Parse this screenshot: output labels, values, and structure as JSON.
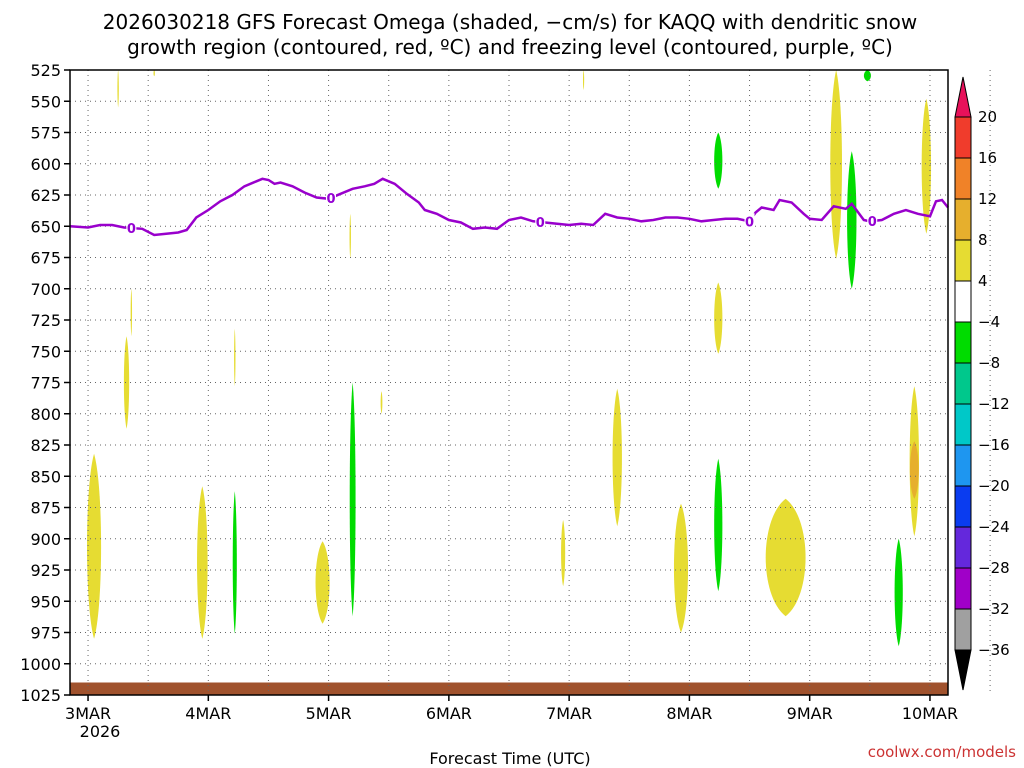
{
  "chart_data": {
    "type": "heatmap",
    "title_lines": [
      "2026030218 GFS Forecast Omega (shaded, −cm/s) for KAQQ with dendritic snow",
      "growth region (contoured, red, ºC) and freezing level (contoured, purple, ºC)"
    ],
    "xlabel": "Forecast Time (UTC)",
    "ylabel": "",
    "x_ticks": [
      "3MAR",
      "4MAR",
      "5MAR",
      "6MAR",
      "7MAR",
      "8MAR",
      "9MAR",
      "10MAR"
    ],
    "x_year": "2026",
    "x_range": [
      2.85,
      10.15
    ],
    "y_ticks": [
      525,
      550,
      575,
      600,
      625,
      650,
      675,
      700,
      725,
      750,
      775,
      800,
      825,
      850,
      875,
      900,
      925,
      950,
      975,
      1000,
      1025
    ],
    "y_range": [
      525,
      1025
    ],
    "grid": true,
    "colorbar": {
      "labels": [
        "20",
        "16",
        "12",
        "8",
        "4",
        "−4",
        "−8",
        "−12",
        "−16",
        "−20",
        "−24",
        "−28",
        "−32",
        "−36"
      ],
      "colors": [
        "#e8115a",
        "#f03c2c",
        "#f08228",
        "#e6af2d",
        "#e6dc32",
        "#ffffff",
        "#00dc00",
        "#00c88c",
        "#00c8c8",
        "#1e96f0",
        "#0a3cf0",
        "#6428dc",
        "#a000c8",
        "#a0a0a0",
        "#000000"
      ]
    },
    "freezing_level": {
      "color": "#9900cc",
      "label": "0",
      "label_times": [
        3.36,
        5.02,
        6.76,
        8.5,
        9.52
      ],
      "points": [
        [
          2.85,
          650
        ],
        [
          3.0,
          651
        ],
        [
          3.1,
          649
        ],
        [
          3.2,
          649
        ],
        [
          3.3,
          651
        ],
        [
          3.45,
          652
        ],
        [
          3.55,
          657
        ],
        [
          3.65,
          656
        ],
        [
          3.75,
          655
        ],
        [
          3.82,
          653
        ],
        [
          3.9,
          643
        ],
        [
          4.0,
          637
        ],
        [
          4.1,
          630
        ],
        [
          4.2,
          625
        ],
        [
          4.3,
          618
        ],
        [
          4.4,
          614
        ],
        [
          4.45,
          612
        ],
        [
          4.5,
          613
        ],
        [
          4.55,
          616
        ],
        [
          4.6,
          615
        ],
        [
          4.7,
          618
        ],
        [
          4.8,
          623
        ],
        [
          4.9,
          627
        ],
        [
          5.0,
          628
        ],
        [
          5.1,
          624
        ],
        [
          5.2,
          620
        ],
        [
          5.3,
          618
        ],
        [
          5.38,
          616
        ],
        [
          5.45,
          612
        ],
        [
          5.55,
          616
        ],
        [
          5.65,
          624
        ],
        [
          5.75,
          631
        ],
        [
          5.8,
          637
        ],
        [
          5.9,
          640
        ],
        [
          6.0,
          645
        ],
        [
          6.1,
          647
        ],
        [
          6.2,
          652
        ],
        [
          6.3,
          651
        ],
        [
          6.4,
          652
        ],
        [
          6.5,
          645
        ],
        [
          6.6,
          643
        ],
        [
          6.7,
          646
        ],
        [
          6.8,
          647
        ],
        [
          6.9,
          648
        ],
        [
          7.0,
          649
        ],
        [
          7.1,
          648
        ],
        [
          7.2,
          649
        ],
        [
          7.3,
          640
        ],
        [
          7.4,
          643
        ],
        [
          7.5,
          644
        ],
        [
          7.6,
          646
        ],
        [
          7.7,
          645
        ],
        [
          7.8,
          643
        ],
        [
          7.9,
          643
        ],
        [
          8.0,
          644
        ],
        [
          8.1,
          646
        ],
        [
          8.2,
          645
        ],
        [
          8.3,
          644
        ],
        [
          8.4,
          644
        ],
        [
          8.5,
          646
        ],
        [
          8.55,
          639
        ],
        [
          8.6,
          635
        ],
        [
          8.7,
          637
        ],
        [
          8.75,
          629
        ],
        [
          8.85,
          631
        ],
        [
          8.95,
          640
        ],
        [
          9.0,
          644
        ],
        [
          9.1,
          645
        ],
        [
          9.2,
          634
        ],
        [
          9.3,
          636
        ],
        [
          9.35,
          632
        ],
        [
          9.45,
          645
        ],
        [
          9.5,
          646
        ],
        [
          9.6,
          645
        ],
        [
          9.7,
          640
        ],
        [
          9.8,
          637
        ],
        [
          9.9,
          640
        ],
        [
          10.0,
          642
        ],
        [
          10.05,
          630
        ],
        [
          10.1,
          629
        ],
        [
          10.15,
          635
        ]
      ]
    },
    "regions": [
      {
        "x": 3.05,
        "y1": 832,
        "y2": 980,
        "w": 0.12,
        "color": "#e6dc32"
      },
      {
        "x": 3.32,
        "y1": 738,
        "y2": 812,
        "w": 0.045,
        "color": "#e6dc32"
      },
      {
        "x": 3.36,
        "y1": 700,
        "y2": 738,
        "w": 0.012,
        "color": "#e6dc32"
      },
      {
        "x": 3.25,
        "y1": 525,
        "y2": 555,
        "w": 0.012,
        "color": "#e6dc32"
      },
      {
        "x": 3.55,
        "y1": 525,
        "y2": 530,
        "w": 0.012,
        "color": "#e6dc32"
      },
      {
        "x": 3.95,
        "y1": 858,
        "y2": 980,
        "w": 0.09,
        "color": "#e6dc32"
      },
      {
        "x": 4.22,
        "y1": 862,
        "y2": 976,
        "w": 0.035,
        "color": "#00dc00"
      },
      {
        "x": 4.22,
        "y1": 732,
        "y2": 778,
        "w": 0.012,
        "color": "#e6dc32"
      },
      {
        "x": 4.95,
        "y1": 902,
        "y2": 968,
        "w": 0.12,
        "color": "#e6dc32"
      },
      {
        "x": 5.2,
        "y1": 775,
        "y2": 962,
        "w": 0.05,
        "color": "#00dc00"
      },
      {
        "x": 5.18,
        "y1": 640,
        "y2": 676,
        "w": 0.012,
        "color": "#e6dc32"
      },
      {
        "x": 5.44,
        "y1": 782,
        "y2": 800,
        "w": 0.015,
        "color": "#e6dc32"
      },
      {
        "x": 6.95,
        "y1": 885,
        "y2": 938,
        "w": 0.035,
        "color": "#e6dc32"
      },
      {
        "x": 7.12,
        "y1": 525,
        "y2": 541,
        "w": 0.01,
        "color": "#e6dc32"
      },
      {
        "x": 7.4,
        "y1": 780,
        "y2": 890,
        "w": 0.08,
        "color": "#e6dc32"
      },
      {
        "x": 7.93,
        "y1": 872,
        "y2": 975,
        "w": 0.12,
        "color": "#e6dc32"
      },
      {
        "x": 8.24,
        "y1": 575,
        "y2": 620,
        "w": 0.07,
        "color": "#00dc00"
      },
      {
        "x": 8.24,
        "y1": 695,
        "y2": 752,
        "w": 0.07,
        "color": "#e6dc32"
      },
      {
        "x": 8.24,
        "y1": 836,
        "y2": 942,
        "w": 0.07,
        "color": "#00dc00"
      },
      {
        "x": 8.8,
        "y1": 868,
        "y2": 962,
        "w": 0.34,
        "color": "#e6dc32"
      },
      {
        "x": 9.22,
        "y1": 525,
        "y2": 676,
        "w": 0.1,
        "color": "#e6dc32"
      },
      {
        "x": 9.35,
        "y1": 590,
        "y2": 700,
        "w": 0.08,
        "color": "#00dc00"
      },
      {
        "x": 9.48,
        "y1": 525,
        "y2": 534,
        "w": 0.06,
        "color": "#00dc00"
      },
      {
        "x": 9.74,
        "y1": 900,
        "y2": 986,
        "w": 0.07,
        "color": "#00dc00"
      },
      {
        "x": 9.87,
        "y1": 778,
        "y2": 898,
        "w": 0.08,
        "color": "#e6dc32"
      },
      {
        "x": 9.87,
        "y1": 822,
        "y2": 868,
        "w": 0.075,
        "color": "#e6af2d"
      },
      {
        "x": 9.97,
        "y1": 548,
        "y2": 656,
        "w": 0.08,
        "color": "#e6dc32"
      }
    ],
    "ground": {
      "color": "#a0522d",
      "from": 1015,
      "to": 1025
    }
  },
  "credit": "coolwx.com/models"
}
